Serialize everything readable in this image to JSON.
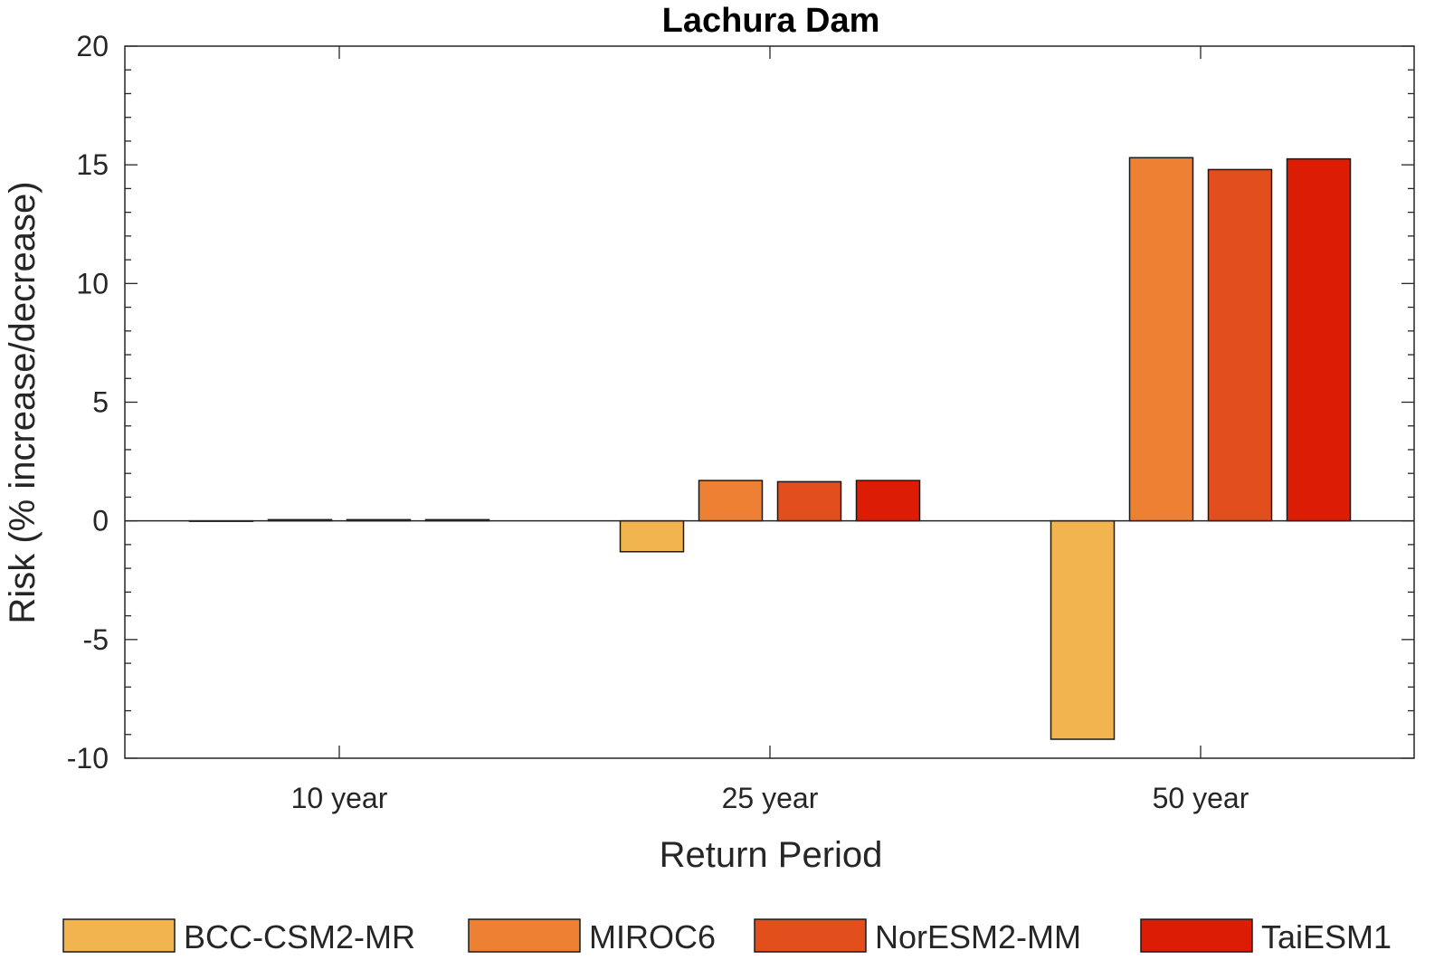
{
  "chart_data": {
    "type": "bar",
    "title": "Lachura Dam",
    "xlabel": "Return Period",
    "ylabel": "Risk (% increase/decrease)",
    "categories": [
      "10 year",
      "25 year",
      "50 year"
    ],
    "ylim": [
      -10,
      20
    ],
    "yticks": [
      -10,
      -5,
      0,
      5,
      10,
      15,
      20
    ],
    "ytick_labels": [
      "-10",
      "-5",
      "0",
      "5",
      "10",
      "15",
      "20"
    ],
    "grid": false,
    "legend_position": "bottom",
    "series": [
      {
        "name": "BCC-CSM2-MR",
        "color": "#F2B44E",
        "values": [
          0.0,
          -1.3,
          -9.2
        ]
      },
      {
        "name": "MIROC6",
        "color": "#EE8034",
        "values": [
          0.05,
          1.7,
          15.3
        ]
      },
      {
        "name": "NorESM2-MM",
        "color": "#E24E1C",
        "values": [
          0.05,
          1.65,
          14.8
        ]
      },
      {
        "name": "TaiESM1",
        "color": "#DD1C05",
        "values": [
          0.05,
          1.7,
          15.25
        ]
      }
    ]
  }
}
